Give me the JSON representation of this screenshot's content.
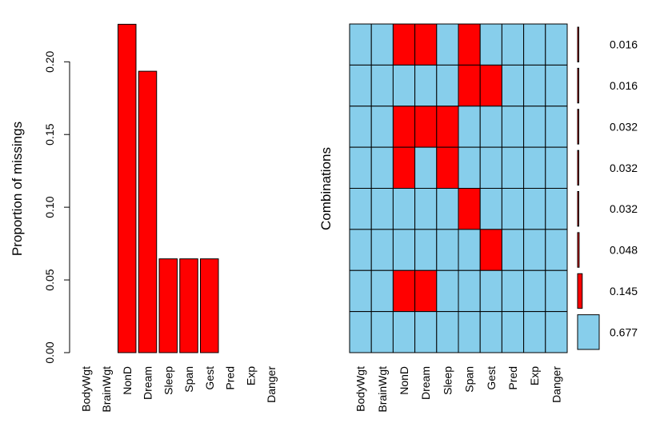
{
  "chart_data": [
    {
      "type": "bar",
      "title": "",
      "xlabel": "",
      "ylabel": "Proportion of missings",
      "categories": [
        "BodyWgt",
        "BrainWgt",
        "NonD",
        "Dream",
        "Sleep",
        "Span",
        "Gest",
        "Pred",
        "Exp",
        "Danger"
      ],
      "values": [
        0.0,
        0.0,
        0.2258,
        0.1935,
        0.0645,
        0.0645,
        0.0645,
        0.0,
        0.0,
        0.0
      ],
      "ylim": [
        0,
        0.226
      ],
      "yticks": [
        "0.00",
        "0.05",
        "0.10",
        "0.15",
        "0.20"
      ],
      "bar_color": "#ff0000",
      "grid": false
    },
    {
      "type": "heatmap",
      "title": "",
      "ylabel": "Combinations",
      "variables": [
        "BodyWgt",
        "BrainWgt",
        "NonD",
        "Dream",
        "Sleep",
        "Span",
        "Gest",
        "Pred",
        "Exp",
        "Danger"
      ],
      "patterns": [
        [
          0,
          0,
          1,
          1,
          0,
          1,
          0,
          0,
          0,
          0
        ],
        [
          0,
          0,
          0,
          0,
          0,
          1,
          1,
          0,
          0,
          0
        ],
        [
          0,
          0,
          1,
          1,
          1,
          0,
          0,
          0,
          0,
          0
        ],
        [
          0,
          0,
          1,
          0,
          1,
          0,
          0,
          0,
          0,
          0
        ],
        [
          0,
          0,
          0,
          0,
          0,
          1,
          0,
          0,
          0,
          0
        ],
        [
          0,
          0,
          0,
          0,
          0,
          0,
          1,
          0,
          0,
          0
        ],
        [
          0,
          0,
          1,
          1,
          0,
          0,
          0,
          0,
          0,
          0
        ],
        [
          0,
          0,
          0,
          0,
          0,
          0,
          0,
          0,
          0,
          0
        ]
      ],
      "proportions": [
        0.016,
        0.016,
        0.032,
        0.032,
        0.032,
        0.048,
        0.145,
        0.677
      ],
      "proportion_labels": [
        "0.016",
        "0.016",
        "0.032",
        "0.032",
        "0.032",
        "0.048",
        "0.145",
        "0.677"
      ],
      "missing_color": "#ff0000",
      "observed_color": "#87ceeb"
    }
  ]
}
